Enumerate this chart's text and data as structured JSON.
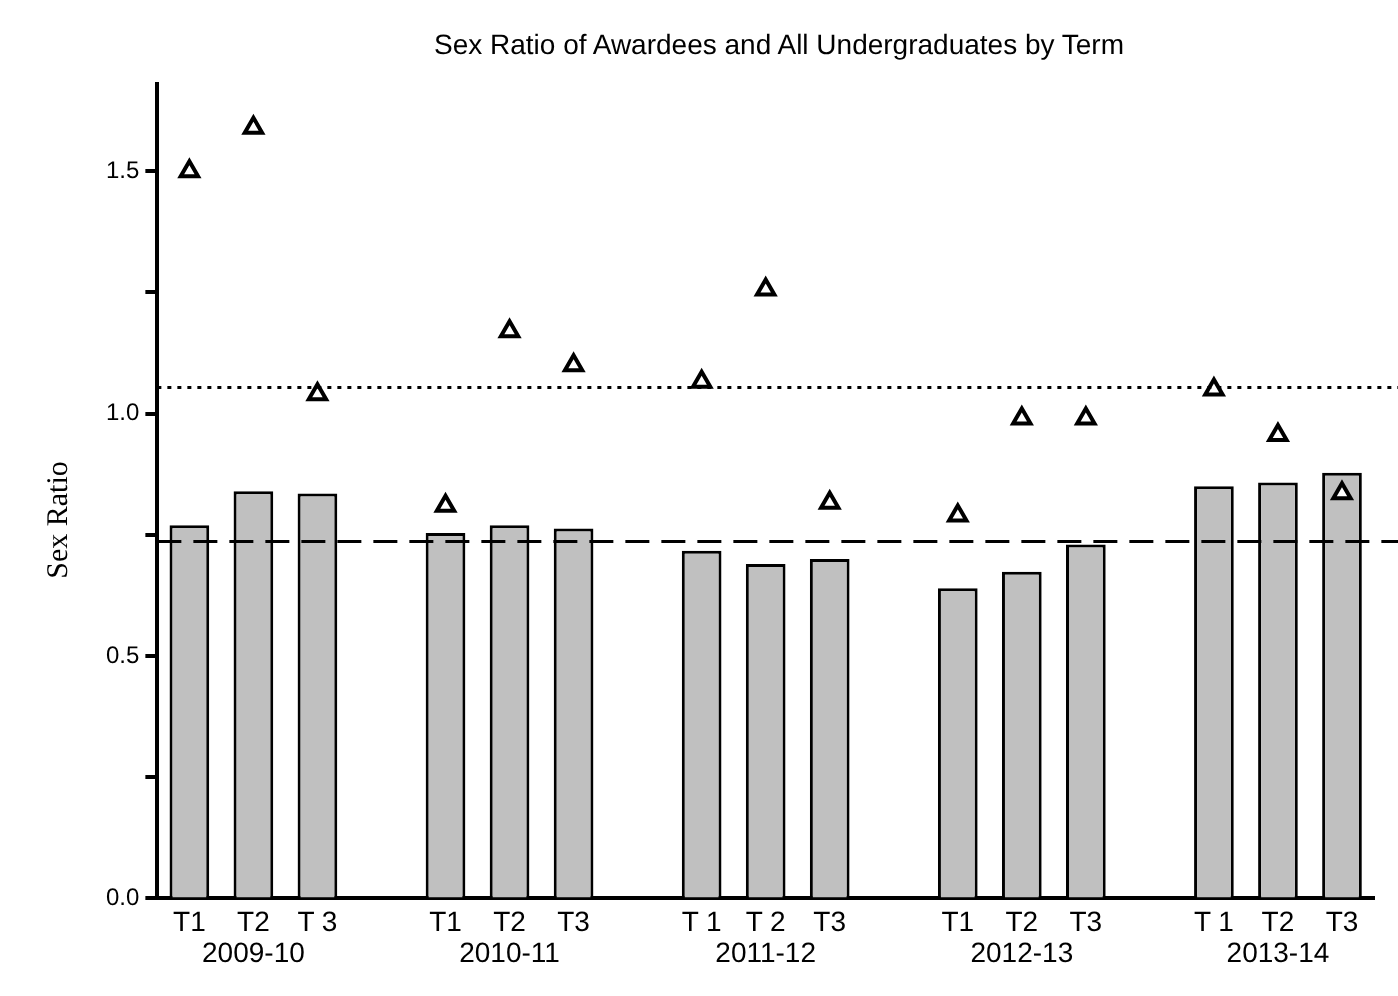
{
  "chart_data": {
    "type": "bar",
    "title": "Sex Ratio of Awardees and All Undergraduates by Term",
    "ylabel": "Sex Ratio",
    "categories": [
      "T1",
      "T2",
      "T 3",
      null,
      "T1",
      "T2",
      "T3",
      null,
      "T 1",
      "T 2",
      "T3",
      null,
      "T1",
      "T2",
      "T3",
      null,
      "T 1",
      "T2",
      "T3"
    ],
    "series": [
      {
        "color": "#c0c0c0",
        "values": [
          0.77,
          0.84,
          0.835,
          null,
          0.754,
          0.77,
          0.763,
          null,
          0.717,
          0.69,
          0.7,
          null,
          0.64,
          0.674,
          0.73,
          null,
          0.85,
          0.858,
          0.878
        ]
      },
      {
        "type": "scatter",
        "color": "#000000",
        "marker": "triangle",
        "values": [
          1.5,
          1.59,
          1.04,
          null,
          0.81,
          1.17,
          1.1,
          null,
          1.066,
          1.256,
          0.816,
          null,
          0.79,
          0.99,
          0.99,
          null,
          1.05,
          0.956,
          0.836
        ]
      }
    ],
    "annotations": [
      "2009-10",
      "2010-11",
      "2011-12",
      "2012-13",
      "2013-14"
    ],
    "ref_lines": [
      {
        "axis": "y",
        "value": 0.736,
        "line_style": "dashed",
        "color": "#000000"
      },
      {
        "axis": "y",
        "value": 1.054,
        "line_style": "dotted",
        "color": "#000000"
      }
    ],
    "ylim": [
      0,
      1.68
    ],
    "yticks": [
      "0.0",
      {
        "value": 0.25,
        "label": null
      },
      {
        "value": 0.5,
        "label": "0.5"
      },
      {
        "value": 0.75,
        "label": null
      },
      {
        "value": 1,
        "label": "1.0"
      },
      {
        "value": 1.25,
        "label": null
      },
      {
        "value": 1.5,
        "label": "1.5"
      }
    ],
    "grid": false,
    "legend": false
  }
}
